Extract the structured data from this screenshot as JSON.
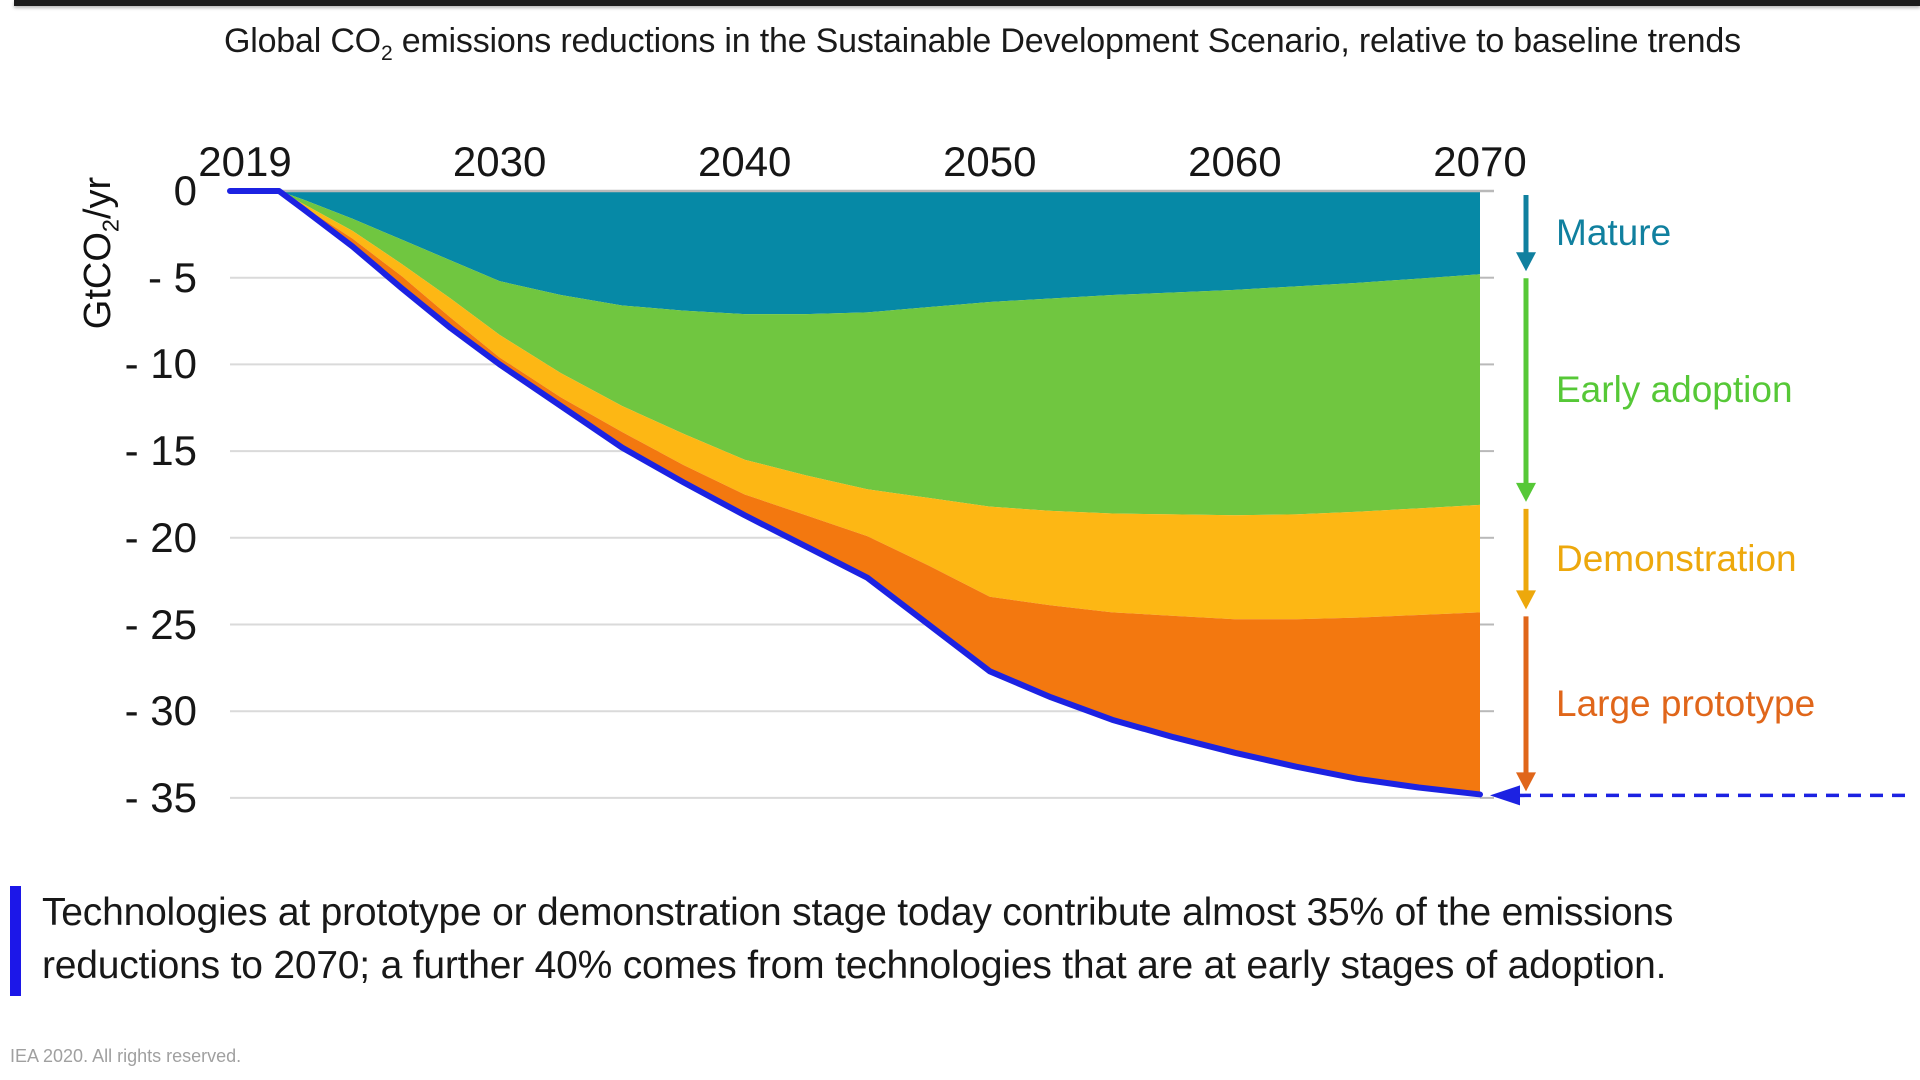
{
  "page": {
    "top_bar_color": "#1c1c1c",
    "background": "#ffffff",
    "accent_blue": "#1c22e2"
  },
  "title": {
    "pre": "Global CO",
    "sub": "2",
    "post": " emissions reductions in the Sustainable Development Scenario, relative to baseline trends"
  },
  "y_axis": {
    "unit_pre": "GtCO",
    "unit_sub": "2",
    "unit_post": "/yr"
  },
  "caption": {
    "bar_color": "#1c17e8",
    "line1": "Technologies at prototype or demonstration stage today contribute almost 35% of the emissions",
    "line2": "reductions to 2070; a further 40% comes from technologies that are at early stages of adoption."
  },
  "footnote": "IEA 2020. All rights reserved.",
  "chart_data": {
    "type": "area",
    "stacked": true,
    "title": "Global CO2 emissions reductions in the Sustainable Development Scenario, relative to baseline trends",
    "ylabel": "GtCO2/yr",
    "xlim": [
      2019,
      2070
    ],
    "ylim": [
      -35,
      0
    ],
    "grid": true,
    "legend_position": "right",
    "x_ticks": [
      2019,
      2030,
      2040,
      2050,
      2060,
      2070
    ],
    "y_ticks": [
      0,
      -5,
      -10,
      -15,
      -20,
      -25,
      -30,
      -35
    ],
    "y_tick_labels": [
      "0",
      "- 5",
      "- 10",
      "- 15",
      "- 20",
      "- 25",
      "- 30",
      "- 35"
    ],
    "x": [
      2019,
      2021,
      2022,
      2024,
      2026,
      2028,
      2030,
      2032.5,
      2035,
      2037.5,
      2040,
      2042.5,
      2045,
      2047.5,
      2050,
      2052.5,
      2055,
      2057.5,
      2060,
      2062.5,
      2065,
      2067.5,
      2070
    ],
    "series": [
      {
        "name": "Mature",
        "color": "#0689a6",
        "boundary": [
          0,
          0,
          -0.5,
          -1.6,
          -2.8,
          -4.0,
          -5.2,
          -6.0,
          -6.6,
          -6.9,
          -7.1,
          -7.1,
          -7.0,
          -6.7,
          -6.4,
          -6.2,
          -6.0,
          -5.85,
          -5.7,
          -5.5,
          -5.3,
          -5.05,
          -4.8
        ]
      },
      {
        "name": "Early adoption",
        "color": "#70c640",
        "boundary": [
          0,
          0,
          -0.75,
          -2.3,
          -4.2,
          -6.2,
          -8.3,
          -10.5,
          -12.4,
          -14.0,
          -15.5,
          -16.4,
          -17.2,
          -17.7,
          -18.2,
          -18.45,
          -18.6,
          -18.65,
          -18.7,
          -18.65,
          -18.5,
          -18.3,
          -18.1
        ]
      },
      {
        "name": "Demonstration",
        "color": "#fdb714",
        "boundary": [
          0,
          0,
          -0.9,
          -2.75,
          -4.9,
          -7.3,
          -9.6,
          -11.9,
          -13.9,
          -15.8,
          -17.5,
          -18.7,
          -19.9,
          -21.6,
          -23.4,
          -23.9,
          -24.3,
          -24.5,
          -24.7,
          -24.7,
          -24.6,
          -24.45,
          -24.3
        ]
      },
      {
        "name": "Large prototype",
        "color": "#f3780f",
        "boundary": [
          0,
          0,
          -1.05,
          -3.2,
          -5.6,
          -7.9,
          -10.0,
          -12.4,
          -14.8,
          -16.8,
          -18.7,
          -20.5,
          -22.3,
          -25.0,
          -27.7,
          -29.2,
          -30.5,
          -31.5,
          -32.4,
          -33.2,
          -33.9,
          -34.4,
          -34.8
        ]
      }
    ],
    "total": {
      "name": "Total reductions",
      "color": "#1c22e2",
      "values": [
        0,
        0,
        -1.05,
        -3.2,
        -5.6,
        -7.9,
        -10.0,
        -12.4,
        -14.8,
        -16.8,
        -18.7,
        -20.5,
        -22.3,
        -25.0,
        -27.7,
        -29.2,
        -30.5,
        -31.5,
        -32.4,
        -33.2,
        -33.9,
        -34.4,
        -34.8
      ]
    },
    "legend": [
      {
        "label": "Mature",
        "color": "#10809f"
      },
      {
        "label": "Early adoption",
        "color": "#56c837"
      },
      {
        "label": "Demonstration",
        "color": "#eda80c"
      },
      {
        "label": "Large prototype",
        "color": "#e0661a"
      }
    ],
    "target_arrow_color": "#1c22e2"
  }
}
